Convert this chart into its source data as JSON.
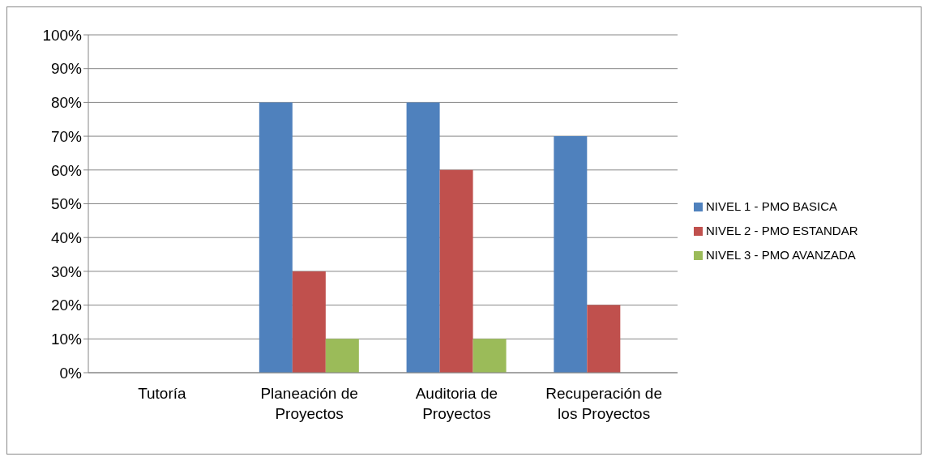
{
  "chart_data": {
    "type": "bar",
    "categories": [
      "Tutoría",
      "Planeación de Proyectos",
      "Auditoria de Proyectos",
      "Recuperación de los Proyectos"
    ],
    "series": [
      {
        "name": "NIVEL 1 - PMO BASICA",
        "color": "#4f81bd",
        "values": [
          0,
          80,
          80,
          70
        ]
      },
      {
        "name": "NIVEL 2 - PMO ESTANDAR",
        "color": "#c0504d",
        "values": [
          0,
          30,
          60,
          20
        ]
      },
      {
        "name": "NIVEL 3 - PMO AVANZADA",
        "color": "#9bbb59",
        "values": [
          0,
          10,
          10,
          0
        ]
      }
    ],
    "ylim": [
      0,
      100
    ],
    "yticks": [
      {
        "value": 0,
        "label": "0%"
      },
      {
        "value": 10,
        "label": "10%"
      },
      {
        "value": 20,
        "label": "20%"
      },
      {
        "value": 30,
        "label": "30%"
      },
      {
        "value": 40,
        "label": "40%"
      },
      {
        "value": 50,
        "label": "50%"
      },
      {
        "value": 60,
        "label": "60%"
      },
      {
        "value": 70,
        "label": "70%"
      },
      {
        "value": 80,
        "label": "80%"
      },
      {
        "value": 90,
        "label": "90%"
      },
      {
        "value": 100,
        "label": "100%"
      }
    ],
    "grid": "y",
    "legend": "right"
  }
}
